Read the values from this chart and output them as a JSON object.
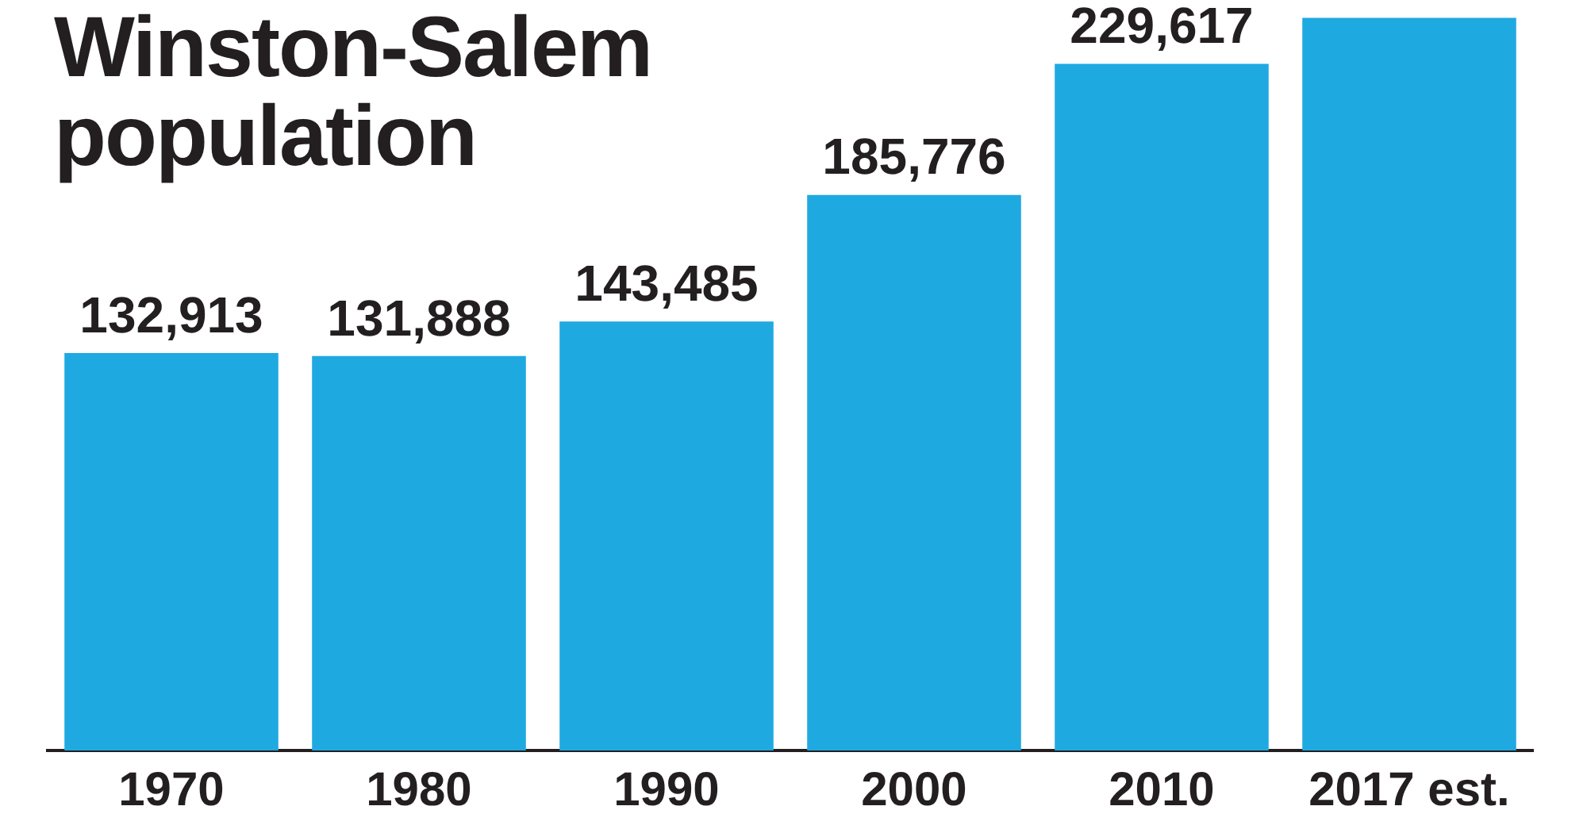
{
  "chart_data": {
    "type": "bar",
    "title": "Winston-Salem population",
    "categories": [
      "1970",
      "1980",
      "1990",
      "2000",
      "2010",
      "2017 est."
    ],
    "values": [
      132913,
      131888,
      143485,
      185776,
      229617,
      245000
    ],
    "value_labels": [
      "132,913",
      "131,888",
      "143,485",
      "185,776",
      "229,617",
      null
    ],
    "color": "#1fa9e1",
    "grid": false,
    "legend": false
  }
}
